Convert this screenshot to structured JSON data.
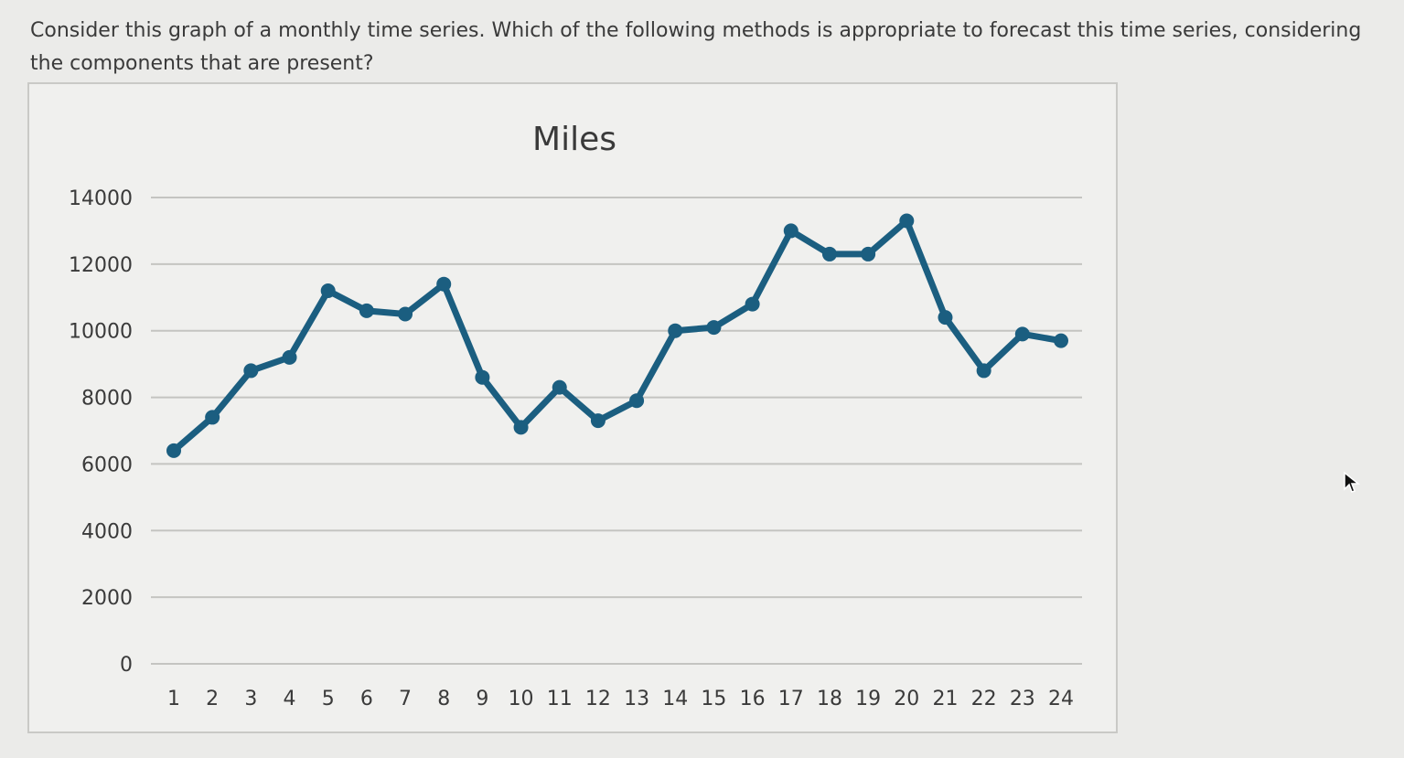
{
  "question": {
    "text": "Consider this graph of a monthly time series. Which of the following methods is appropriate to forecast this time series, considering the components that are present?"
  },
  "colors": {
    "series": "#1b5e80",
    "gridline": "#c4c4c1",
    "background": "#f0f0ee"
  },
  "chart_data": {
    "type": "line",
    "title": "Miles",
    "xlabel": "",
    "ylabel": "",
    "x": [
      1,
      2,
      3,
      4,
      5,
      6,
      7,
      8,
      9,
      10,
      11,
      12,
      13,
      14,
      15,
      16,
      17,
      18,
      19,
      20,
      21,
      22,
      23,
      24
    ],
    "series": [
      {
        "values": [
          6400,
          7400,
          8800,
          9200,
          11200,
          10600,
          10500,
          11400,
          8600,
          7100,
          8300,
          7300,
          7900,
          10000,
          10100,
          10800,
          13000,
          12300,
          12300,
          13300,
          10400,
          8800,
          9900,
          9700
        ]
      }
    ],
    "ylim": [
      0,
      14000
    ],
    "yticks": [
      0,
      2000,
      4000,
      6000,
      8000,
      10000,
      12000,
      14000
    ],
    "grid": true,
    "legend": "none"
  },
  "cursor_icon": "mouse-pointer-icon"
}
